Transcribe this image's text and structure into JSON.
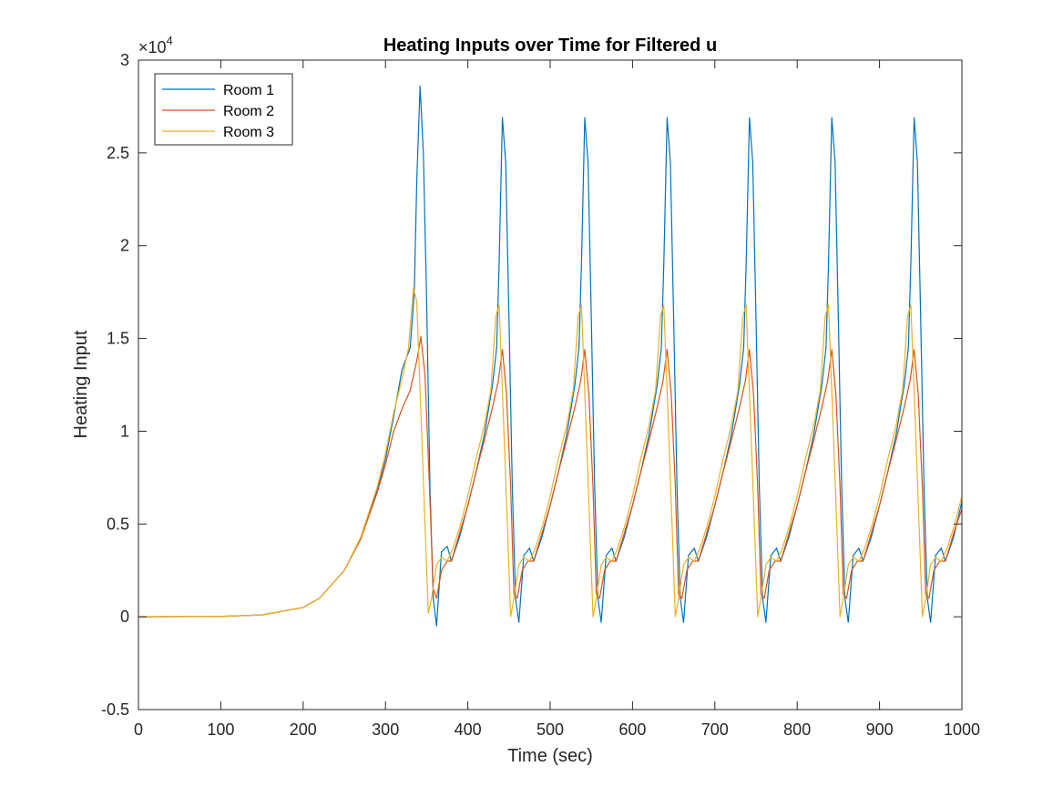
{
  "chart_data": {
    "type": "line",
    "title": "Heating Inputs over Time for Filtered u",
    "xlabel": "Time (sec)",
    "ylabel": "Heating Input",
    "xlim": [
      0,
      1000
    ],
    "ylim": [
      -0.5,
      3
    ],
    "y_exponent_label": "×10",
    "y_exponent_power": "4",
    "xticks": [
      "0",
      "100",
      "200",
      "300",
      "400",
      "500",
      "600",
      "700",
      "800",
      "900",
      "1000"
    ],
    "yticks": [
      "-0.5",
      "0",
      "0.5",
      "1",
      "1.5",
      "2",
      "2.5",
      "3"
    ],
    "grid": false,
    "legend_position": "top-left",
    "series": [
      {
        "name": "Room 1",
        "color": "#0072BD",
        "x": [
          0,
          100,
          150,
          200,
          220,
          250,
          270,
          290,
          300,
          310,
          320,
          330,
          335,
          338,
          342,
          346,
          350,
          354,
          358,
          362,
          368,
          375,
          380,
          390,
          400,
          410,
          420,
          430,
          435,
          438,
          442,
          446,
          450,
          454,
          458,
          462,
          468,
          475,
          480,
          490,
          500,
          510,
          520,
          530,
          535,
          538,
          542,
          546,
          550,
          554,
          558,
          562,
          568,
          575,
          580,
          590,
          600,
          610,
          620,
          630,
          635,
          638,
          642,
          646,
          650,
          654,
          658,
          662,
          668,
          675,
          680,
          690,
          700,
          710,
          720,
          730,
          735,
          738,
          742,
          746,
          750,
          754,
          758,
          762,
          768,
          775,
          780,
          790,
          800,
          810,
          820,
          830,
          835,
          838,
          842,
          846,
          850,
          854,
          858,
          862,
          868,
          875,
          880,
          890,
          900,
          910,
          920,
          930,
          935,
          938,
          942,
          946,
          950,
          954,
          958,
          962,
          968,
          975,
          980,
          990,
          1000
        ],
        "y": [
          0,
          0.002,
          0.01,
          0.05,
          0.1,
          0.25,
          0.42,
          0.68,
          0.85,
          1.08,
          1.33,
          1.45,
          1.75,
          2.35,
          2.86,
          2.5,
          1.7,
          0.7,
          0.1,
          -0.05,
          0.35,
          0.38,
          0.3,
          0.43,
          0.6,
          0.78,
          0.98,
          1.25,
          1.45,
          1.9,
          2.69,
          2.45,
          1.6,
          0.7,
          0.1,
          -0.03,
          0.33,
          0.37,
          0.3,
          0.43,
          0.6,
          0.78,
          0.98,
          1.25,
          1.45,
          1.9,
          2.69,
          2.45,
          1.6,
          0.7,
          0.1,
          -0.03,
          0.33,
          0.37,
          0.3,
          0.43,
          0.6,
          0.78,
          0.98,
          1.25,
          1.45,
          1.9,
          2.69,
          2.45,
          1.6,
          0.7,
          0.1,
          -0.03,
          0.33,
          0.37,
          0.3,
          0.43,
          0.6,
          0.78,
          0.98,
          1.25,
          1.45,
          1.9,
          2.69,
          2.45,
          1.6,
          0.7,
          0.1,
          -0.03,
          0.33,
          0.37,
          0.3,
          0.43,
          0.6,
          0.78,
          0.98,
          1.25,
          1.45,
          1.9,
          2.69,
          2.45,
          1.6,
          0.7,
          0.1,
          -0.03,
          0.33,
          0.37,
          0.3,
          0.43,
          0.6,
          0.78,
          0.98,
          1.25,
          1.45,
          1.9,
          2.69,
          2.45,
          1.6,
          0.7,
          0.1,
          -0.03,
          0.33,
          0.37,
          0.3,
          0.43,
          0.62
        ]
      },
      {
        "name": "Room 2",
        "color": "#D95319",
        "x": [
          0,
          100,
          150,
          200,
          220,
          250,
          270,
          290,
          300,
          310,
          320,
          330,
          338,
          343,
          348,
          353,
          358,
          362,
          368,
          375,
          380,
          390,
          400,
          410,
          420,
          430,
          437,
          442,
          447,
          452,
          456,
          460,
          466,
          473,
          480,
          490,
          500,
          510,
          520,
          530,
          537,
          542,
          547,
          552,
          556,
          560,
          566,
          573,
          580,
          590,
          600,
          610,
          620,
          630,
          637,
          642,
          647,
          652,
          656,
          660,
          666,
          673,
          680,
          690,
          700,
          710,
          720,
          730,
          737,
          742,
          747,
          752,
          756,
          760,
          766,
          773,
          780,
          790,
          800,
          810,
          820,
          830,
          837,
          842,
          847,
          852,
          856,
          860,
          866,
          873,
          880,
          890,
          900,
          910,
          920,
          930,
          937,
          942,
          947,
          952,
          956,
          960,
          966,
          973,
          980,
          990,
          1000
        ],
        "y": [
          0,
          0.002,
          0.01,
          0.05,
          0.1,
          0.25,
          0.42,
          0.67,
          0.82,
          1.0,
          1.12,
          1.22,
          1.38,
          1.51,
          1.3,
          0.75,
          0.15,
          0.1,
          0.25,
          0.3,
          0.3,
          0.45,
          0.6,
          0.78,
          0.95,
          1.13,
          1.27,
          1.44,
          1.2,
          0.7,
          0.12,
          0.1,
          0.25,
          0.3,
          0.3,
          0.45,
          0.6,
          0.78,
          0.95,
          1.13,
          1.27,
          1.44,
          1.2,
          0.7,
          0.12,
          0.1,
          0.25,
          0.3,
          0.3,
          0.45,
          0.6,
          0.78,
          0.95,
          1.13,
          1.27,
          1.44,
          1.2,
          0.7,
          0.12,
          0.1,
          0.25,
          0.3,
          0.3,
          0.45,
          0.6,
          0.78,
          0.95,
          1.13,
          1.27,
          1.44,
          1.2,
          0.7,
          0.12,
          0.1,
          0.25,
          0.3,
          0.3,
          0.45,
          0.6,
          0.78,
          0.95,
          1.13,
          1.27,
          1.44,
          1.2,
          0.7,
          0.12,
          0.1,
          0.25,
          0.3,
          0.3,
          0.45,
          0.6,
          0.78,
          0.95,
          1.13,
          1.27,
          1.44,
          1.2,
          0.7,
          0.12,
          0.1,
          0.25,
          0.3,
          0.3,
          0.45,
          0.58
        ]
      },
      {
        "name": "Room 3",
        "color": "#EDB120",
        "x": [
          0,
          100,
          150,
          200,
          220,
          250,
          270,
          290,
          300,
          310,
          320,
          328,
          334,
          338,
          343,
          348,
          352,
          356,
          362,
          368,
          375,
          382,
          390,
          400,
          410,
          420,
          428,
          434,
          438,
          443,
          448,
          452,
          456,
          462,
          468,
          475,
          482,
          490,
          500,
          510,
          520,
          528,
          534,
          538,
          543,
          548,
          552,
          556,
          562,
          568,
          575,
          582,
          590,
          600,
          610,
          620,
          628,
          634,
          638,
          643,
          648,
          652,
          656,
          662,
          668,
          675,
          682,
          690,
          700,
          710,
          720,
          728,
          734,
          738,
          743,
          748,
          752,
          756,
          762,
          768,
          775,
          782,
          790,
          800,
          810,
          820,
          828,
          834,
          838,
          843,
          848,
          852,
          856,
          862,
          868,
          875,
          882,
          890,
          900,
          910,
          920,
          928,
          934,
          938,
          943,
          948,
          952,
          956,
          962,
          968,
          975,
          982,
          990,
          1000
        ],
        "y": [
          0,
          0.002,
          0.01,
          0.05,
          0.1,
          0.25,
          0.43,
          0.7,
          0.88,
          1.1,
          1.28,
          1.45,
          1.77,
          1.7,
          1.1,
          0.5,
          0.02,
          0.1,
          0.28,
          0.32,
          0.3,
          0.37,
          0.48,
          0.65,
          0.85,
          1.03,
          1.22,
          1.62,
          1.68,
          1.1,
          0.5,
          0.0,
          0.1,
          0.28,
          0.32,
          0.3,
          0.37,
          0.48,
          0.65,
          0.85,
          1.03,
          1.22,
          1.62,
          1.68,
          1.1,
          0.5,
          0.0,
          0.1,
          0.28,
          0.32,
          0.3,
          0.37,
          0.48,
          0.65,
          0.85,
          1.03,
          1.22,
          1.62,
          1.68,
          1.1,
          0.5,
          0.0,
          0.1,
          0.28,
          0.32,
          0.3,
          0.37,
          0.48,
          0.65,
          0.85,
          1.03,
          1.22,
          1.62,
          1.68,
          1.1,
          0.5,
          0.0,
          0.1,
          0.28,
          0.32,
          0.3,
          0.37,
          0.48,
          0.65,
          0.85,
          1.03,
          1.22,
          1.62,
          1.68,
          1.1,
          0.5,
          0.0,
          0.1,
          0.28,
          0.32,
          0.3,
          0.37,
          0.48,
          0.65,
          0.85,
          1.03,
          1.22,
          1.62,
          1.68,
          1.1,
          0.5,
          0.0,
          0.1,
          0.28,
          0.32,
          0.3,
          0.37,
          0.48,
          0.65
        ]
      }
    ]
  }
}
